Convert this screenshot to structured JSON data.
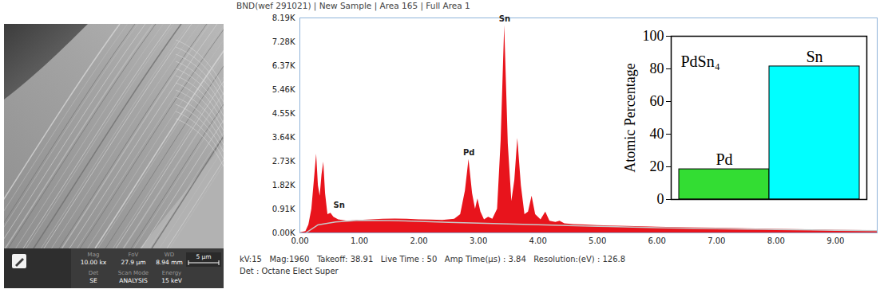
{
  "sem_image": {
    "info_bar": [
      {
        "label": "Mag",
        "value": "10.00 kx"
      },
      {
        "label": "FoV",
        "value": "27.9 µm"
      },
      {
        "label": "WD",
        "value": "8.94 mm"
      },
      {
        "label": "Det",
        "value": "SE"
      },
      {
        "label": "Scan Mode",
        "value": "ANALYSIS"
      },
      {
        "label": "Energy",
        "value": "15 keV"
      }
    ],
    "scale_bar": "5 µm"
  },
  "chart_data": [
    {
      "type": "area",
      "title": "BND(wef 291021) | New Sample | Area 165 | Full Area 1",
      "caption": [
        "kV:15   Mag:1960   Takeoff: 38.91   Live Time : 50   Amp Time(µs) : 3.84   Resolution:(eV) : 126.8",
        "Det : Octane Elect Super"
      ],
      "series": [
        {
          "type": "area",
          "color": "#e8141c",
          "x": [
            0.0,
            0.1,
            0.15,
            0.2,
            0.25,
            0.28,
            0.31,
            0.34,
            0.37,
            0.4,
            0.43,
            0.47,
            0.52,
            0.57,
            0.65,
            0.8,
            1.0,
            1.2,
            1.4,
            1.6,
            1.8,
            2.0,
            2.2,
            2.4,
            2.6,
            2.7,
            2.78,
            2.84,
            2.9,
            2.95,
            2.99,
            3.04,
            3.1,
            3.17,
            3.24,
            3.32,
            3.38,
            3.44,
            3.5,
            3.56,
            3.61,
            3.66,
            3.72,
            3.78,
            3.84,
            3.9,
            3.96,
            4.05,
            4.13,
            4.2,
            4.3,
            4.37,
            4.45,
            4.6,
            4.8,
            5.0,
            5.5,
            6.0,
            6.5,
            7.0,
            7.5,
            8.0,
            8.5,
            9.0,
            9.5,
            9.7
          ],
          "values": [
            0,
            50,
            300,
            900,
            2200,
            3000,
            1800,
            1400,
            2200,
            2700,
            1500,
            700,
            750,
            600,
            500,
            450,
            480,
            500,
            520,
            530,
            520,
            500,
            490,
            480,
            520,
            700,
            1600,
            2800,
            1500,
            900,
            1300,
            800,
            500,
            600,
            520,
            900,
            3500,
            7900,
            3400,
            1200,
            2000,
            3600,
            1800,
            700,
            800,
            1400,
            700,
            500,
            800,
            450,
            400,
            450,
            350,
            320,
            300,
            280,
            250,
            220,
            200,
            180,
            160,
            140,
            120,
            100,
            90,
            85
          ]
        },
        {
          "type": "line",
          "color": "#c8c8c8",
          "x": [
            0.1,
            0.3,
            0.6,
            1.0,
            1.5,
            2.0,
            2.5,
            3.0,
            3.5,
            4.0,
            5.0,
            6.0,
            7.0,
            8.0,
            9.0,
            9.7
          ],
          "values": [
            0,
            300,
            420,
            480,
            470,
            440,
            400,
            370,
            340,
            310,
            250,
            200,
            160,
            130,
            100,
            85
          ]
        }
      ],
      "annotations": [
        {
          "text": "Sn",
          "x": 0.66,
          "y": 800
        },
        {
          "text": "Pd",
          "x": 2.84,
          "y": 2800
        },
        {
          "text": "Sn",
          "x": 3.44,
          "y": 7900
        }
      ],
      "xlim": [
        0,
        9.7
      ],
      "xticks": [
        {
          "value": 0,
          "label": "0.00"
        },
        {
          "value": 1,
          "label": "1.00"
        },
        {
          "value": 2,
          "label": "2.00"
        },
        {
          "value": 3,
          "label": "3.00"
        },
        {
          "value": 4,
          "label": "4.00"
        },
        {
          "value": 5,
          "label": "5.00"
        },
        {
          "value": 6,
          "label": "6.00"
        },
        {
          "value": 7,
          "label": "7.00"
        },
        {
          "value": 8,
          "label": "8.00"
        },
        {
          "value": 9,
          "label": "9.00"
        }
      ],
      "ylim": [
        0,
        8190
      ],
      "yticks": [
        {
          "value": 0,
          "label": "0.00K"
        },
        {
          "value": 910,
          "label": "0.91K"
        },
        {
          "value": 1820,
          "label": "1.82K"
        },
        {
          "value": 2730,
          "label": "2.73K"
        },
        {
          "value": 3640,
          "label": "3.64K"
        },
        {
          "value": 4550,
          "label": "4.55K"
        },
        {
          "value": 5460,
          "label": "5.46K"
        },
        {
          "value": 6370,
          "label": "6.37K"
        },
        {
          "value": 7280,
          "label": "7.28K"
        },
        {
          "value": 8190,
          "label": "8.19K"
        }
      ],
      "grid": false
    },
    {
      "type": "bar",
      "title": "PdSn₄",
      "y_label": "Atomic Percentage",
      "categories": [
        "Pd",
        "Sn"
      ],
      "values": [
        18.5,
        81.5
      ],
      "colors": [
        "#33dd33",
        "#00ffff"
      ],
      "ylim": [
        0,
        100
      ],
      "yticks": [
        0,
        20,
        40,
        60,
        80,
        100
      ],
      "tick_labels": "y",
      "grid": false
    }
  ]
}
